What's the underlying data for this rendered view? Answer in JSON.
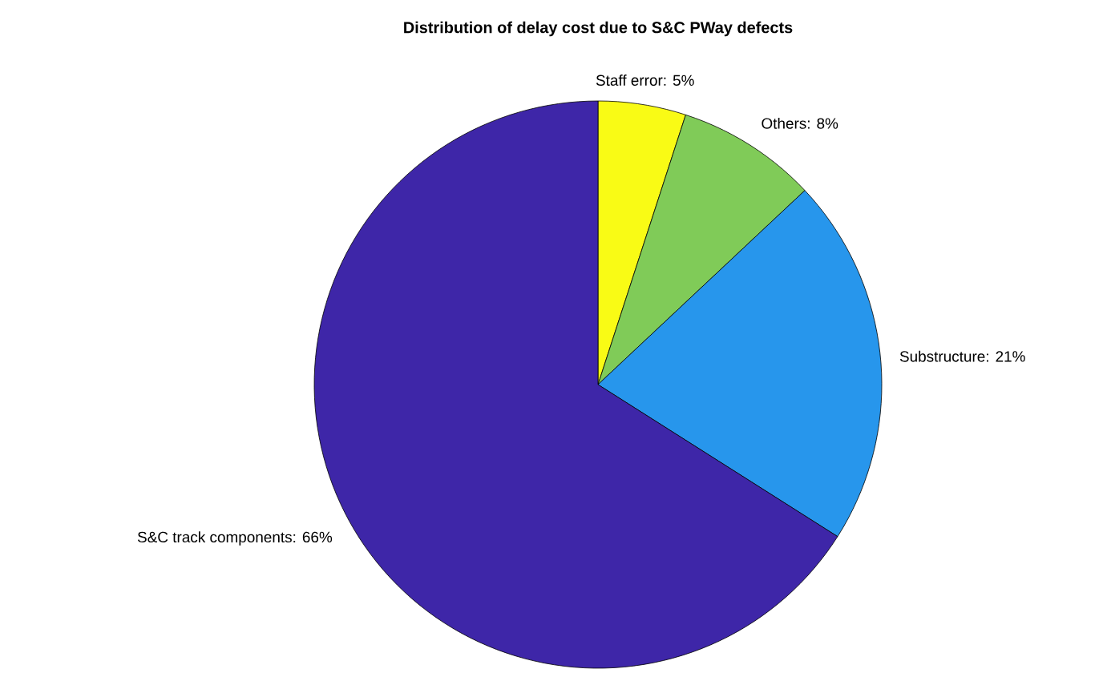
{
  "chart_data": {
    "type": "pie",
    "title": "Distribution of delay cost due to S&C PWay defects",
    "categories": [
      "Staff error: 5%",
      "Others: 8%",
      "Substructure: 21%",
      "S&C track components: 66%"
    ],
    "values": [
      5,
      8,
      21,
      66
    ],
    "colors": [
      "#f9fb15",
      "#80cb58",
      "#2796ec",
      "#3e26a8"
    ]
  }
}
